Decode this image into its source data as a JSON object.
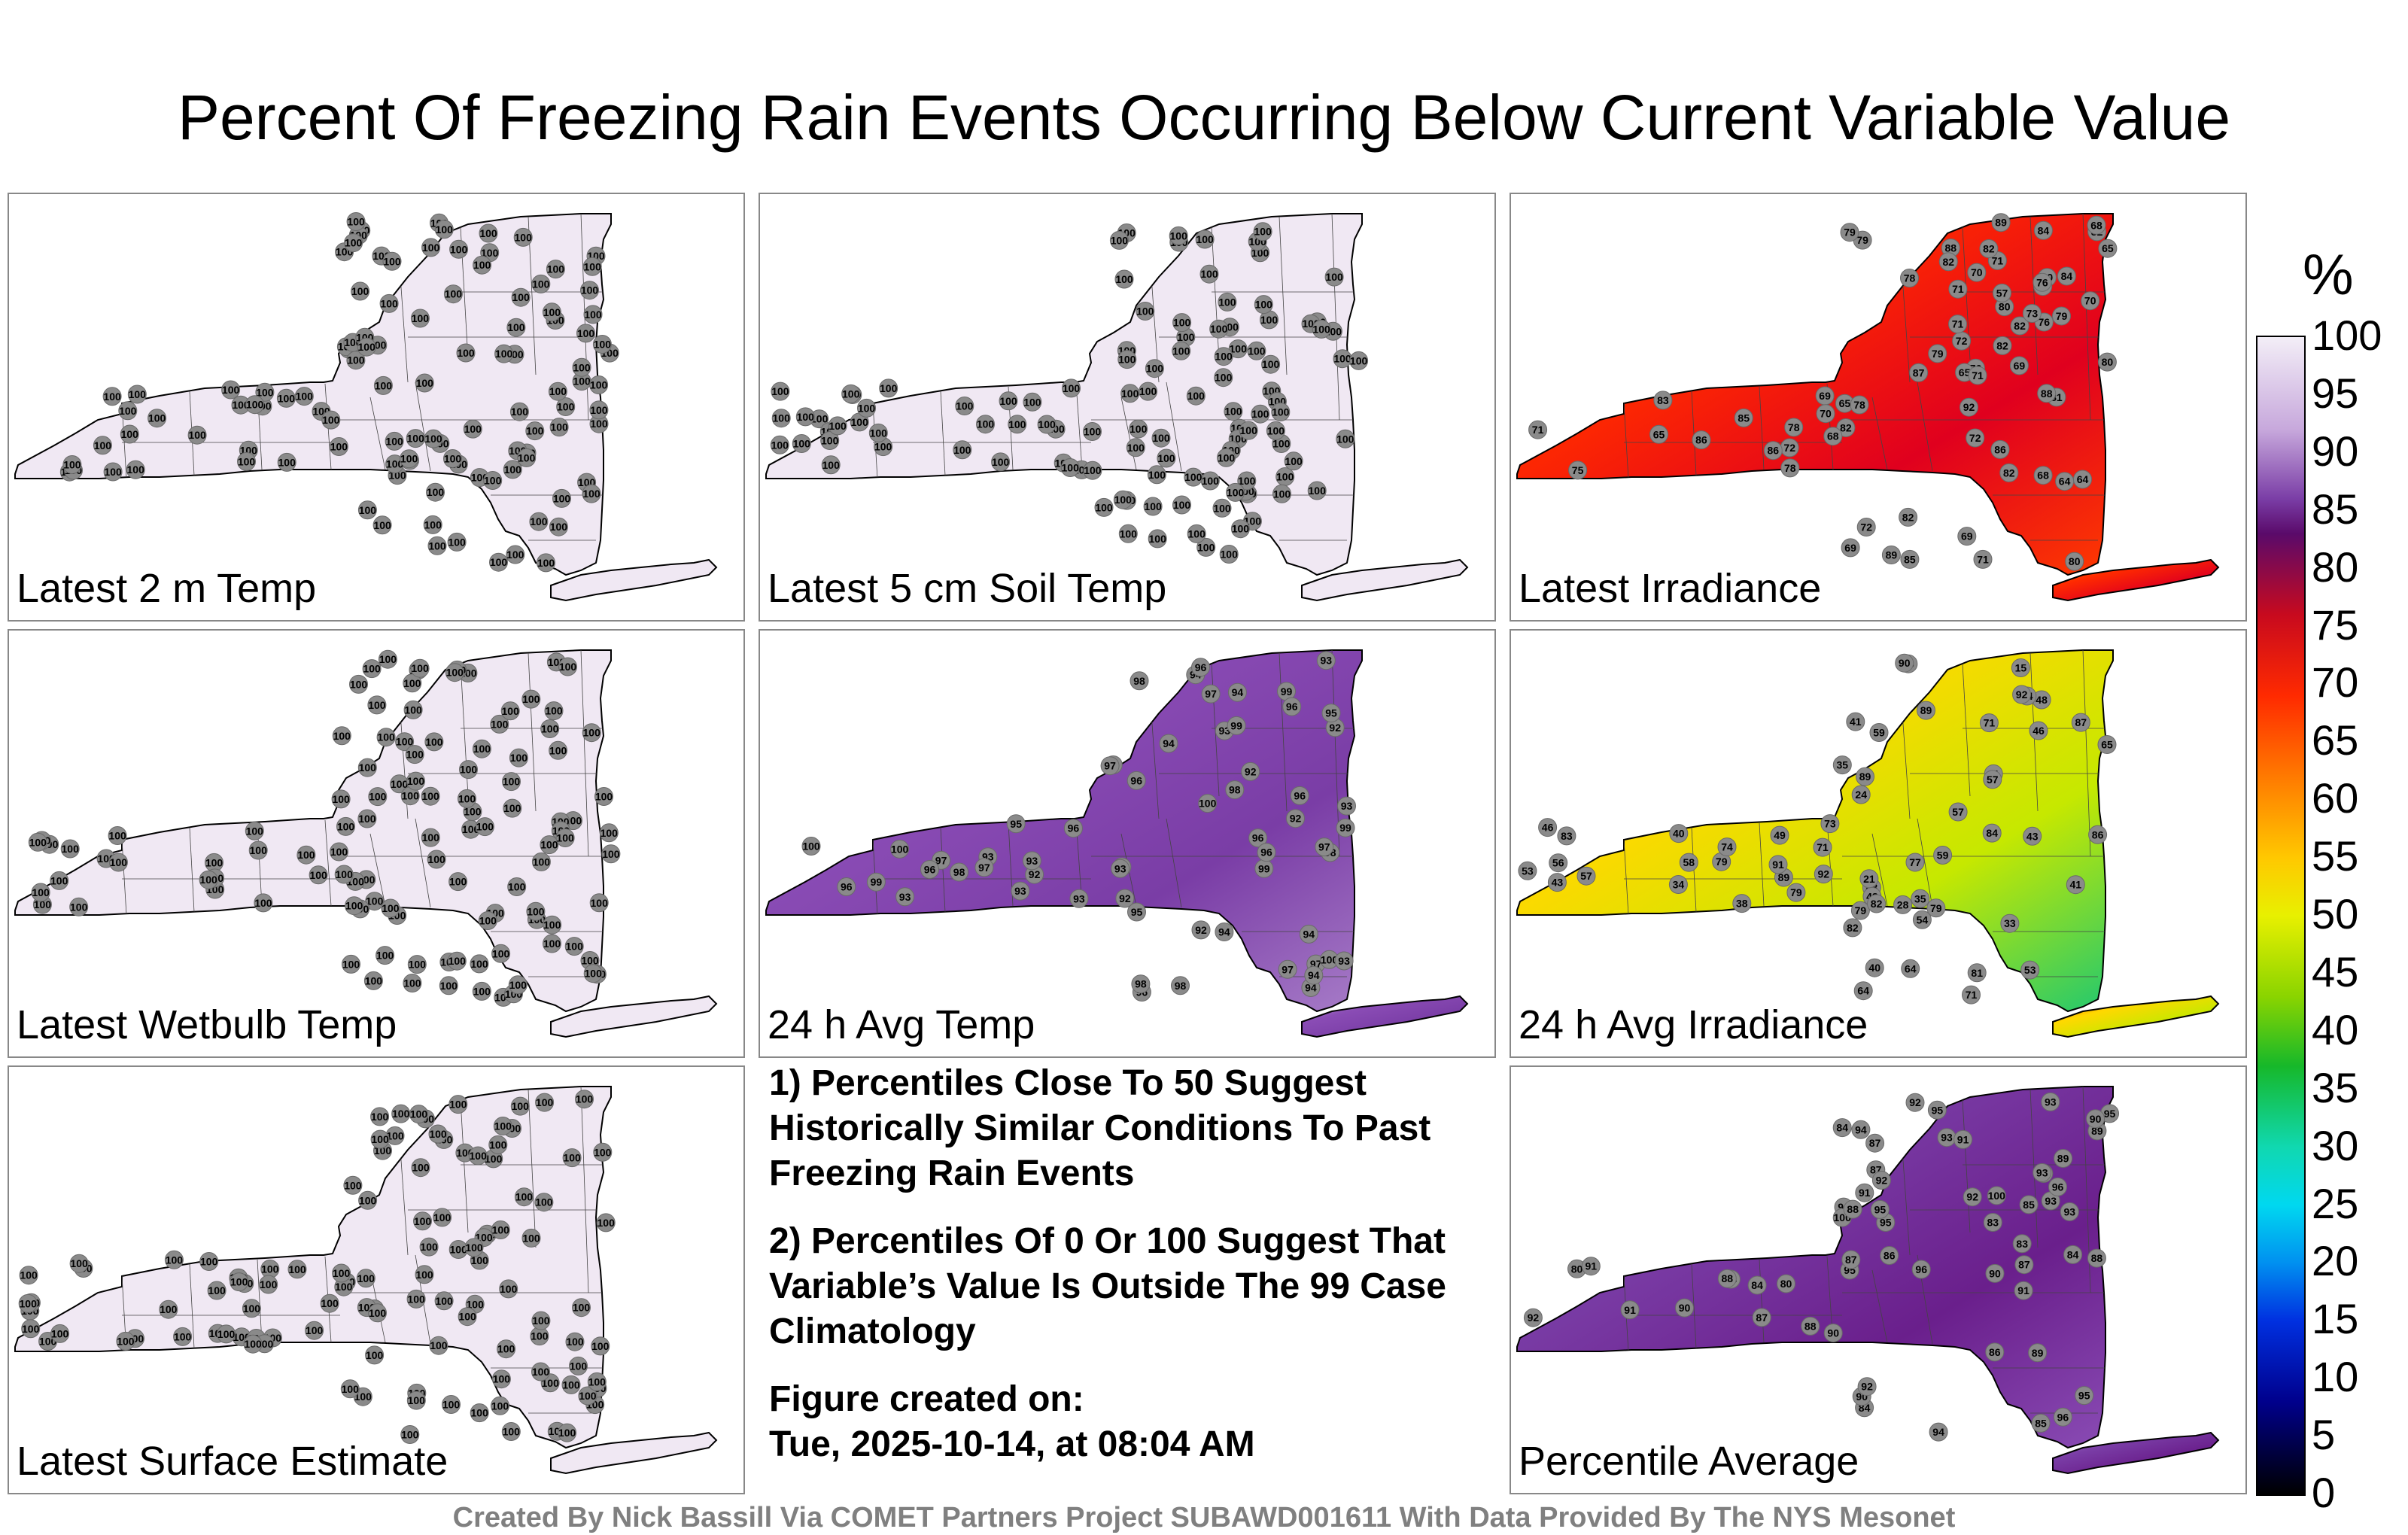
{
  "title": "Percent Of Freezing Rain Events Occurring Below Current Variable Value",
  "panels": [
    {
      "label": "Latest 2 m Temp",
      "fill": "uniform-100",
      "station_values": [
        100
      ]
    },
    {
      "label": "Latest 5 cm Soil Temp",
      "fill": "uniform-100",
      "station_values": [
        100
      ]
    },
    {
      "label": "Latest Irradiance",
      "fill": "red-orange",
      "station_values": [
        79,
        82,
        60,
        72,
        71,
        64,
        78,
        85,
        65,
        71,
        69,
        72,
        80,
        82,
        57,
        76,
        78,
        82,
        86,
        71,
        88,
        72,
        82,
        69,
        76,
        92,
        82,
        65,
        64,
        86,
        85,
        73,
        89,
        87,
        68,
        70,
        71,
        70,
        81,
        80,
        79,
        84,
        76,
        69,
        75,
        71,
        65,
        79,
        82,
        80,
        65,
        64,
        72,
        70,
        78,
        68,
        83,
        68,
        82,
        71,
        84,
        69,
        79,
        89,
        86,
        78,
        88,
        82
      ]
    },
    {
      "label": "Latest Wetbulb Temp",
      "fill": "uniform-100",
      "station_values": [
        100
      ]
    },
    {
      "label": "24 h Avg Temp",
      "fill": "purple",
      "station_values": [
        99,
        94,
        93,
        96,
        100,
        97,
        93,
        99,
        96,
        98,
        95,
        92,
        97,
        98,
        94,
        92,
        96,
        93
      ]
    },
    {
      "label": "24 h Avg Irradiance",
      "fill": "gradient",
      "station_values": [
        83,
        89,
        86,
        84,
        82,
        79,
        71,
        56,
        89,
        57,
        48,
        46,
        81,
        59,
        49,
        48,
        79,
        53,
        64,
        38,
        41,
        92,
        89,
        79,
        87,
        83,
        82,
        34,
        43,
        35,
        57,
        48,
        71,
        79,
        65,
        54,
        71,
        77,
        43,
        73,
        59,
        58,
        74,
        24,
        35,
        21,
        15,
        91,
        90,
        64,
        46,
        40,
        28,
        41,
        21,
        33,
        40,
        57,
        53,
        64,
        92
      ]
    },
    {
      "label": "Latest Surface Estimate",
      "fill": "uniform-100",
      "station_values": [
        100
      ]
    },
    {
      "label": "Percentile Average",
      "fill": "purple-avg",
      "station_values": [
        94,
        95,
        91,
        93,
        92,
        89,
        90,
        88,
        87,
        95,
        96,
        85,
        86,
        90,
        84,
        91,
        88,
        100,
        92,
        93,
        83,
        80,
        84,
        87
      ]
    }
  ],
  "notes": [
    "1) Percentiles Close To 50 Suggest Historically Similar Conditions To Past Freezing Rain Events",
    "2) Percentiles Of 0 Or 100 Suggest That Variable’s Value Is Outside The 99 Case Climatology",
    "Figure created on:",
    "Tue, 2025-10-14, at 08:04 AM"
  ],
  "colorbar": {
    "unit": "%",
    "ticks": [
      "100",
      "95",
      "90",
      "85",
      "80",
      "75",
      "70",
      "65",
      "60",
      "55",
      "50",
      "45",
      "40",
      "35",
      "30",
      "25",
      "20",
      "15",
      "10",
      "5",
      "0"
    ]
  },
  "credit": "Created By Nick Bassill Via COMET Partners Project SUBAWD001611 With Data Provided By The NYS Mesonet",
  "colors": {
    "base_fill": "#f0e8f3",
    "purple": "#7a3da6",
    "dot": "#8a8a8a"
  }
}
